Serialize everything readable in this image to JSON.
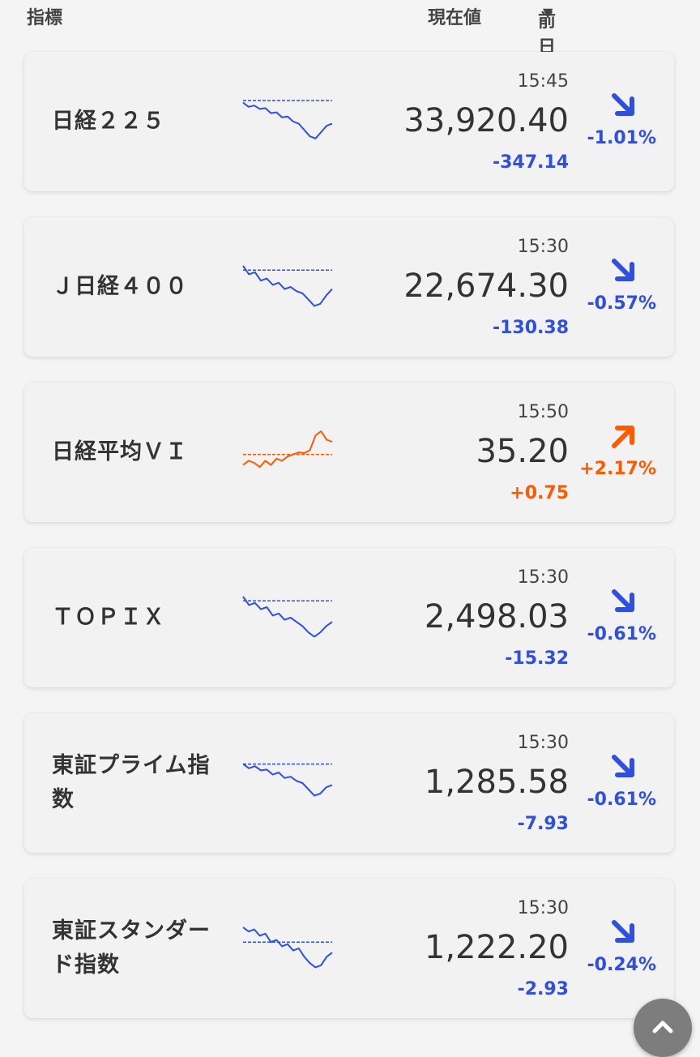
{
  "header": {
    "index_label": "指標",
    "price_label": "現在値",
    "change_label": "前日比率(%)",
    "sort_icon": "▼"
  },
  "colors": {
    "down": "#2f4fe0",
    "up": "#ff5a00"
  },
  "items": [
    {
      "name": "日経２２５",
      "time": "15:45",
      "price": "33,920.40",
      "diff": "-347.14",
      "pct": "-1.01%",
      "dir": "down",
      "spark": [
        0.05,
        0.15,
        0.12,
        0.2,
        0.18,
        0.3,
        0.28,
        0.4,
        0.38,
        0.5,
        0.55,
        0.7,
        0.85,
        0.9,
        0.75,
        0.6,
        0.55
      ],
      "base": 0.0
    },
    {
      "name": "Ｊ日経４００",
      "time": "15:30",
      "price": "22,674.30",
      "diff": "-130.38",
      "pct": "-0.57%",
      "dir": "down",
      "spark": [
        0.0,
        0.2,
        0.15,
        0.35,
        0.3,
        0.45,
        0.4,
        0.55,
        0.5,
        0.6,
        0.65,
        0.8,
        0.95,
        0.9,
        0.7,
        0.55
      ],
      "base": 0.1
    },
    {
      "name": "日経平均ＶＩ",
      "time": "15:50",
      "price": "35.20",
      "diff": "+0.75",
      "pct": "+2.17%",
      "dir": "up",
      "spark": [
        0.8,
        0.7,
        0.75,
        0.85,
        0.7,
        0.8,
        0.65,
        0.7,
        0.6,
        0.55,
        0.5,
        0.52,
        0.45,
        0.1,
        0.0,
        0.2,
        0.25
      ],
      "base": 0.55
    },
    {
      "name": "ＴＯＰＩＸ",
      "time": "15:30",
      "price": "2,498.03",
      "diff": "-15.32",
      "pct": "-0.61%",
      "dir": "down",
      "spark": [
        0.0,
        0.2,
        0.15,
        0.3,
        0.25,
        0.45,
        0.4,
        0.55,
        0.5,
        0.6,
        0.7,
        0.85,
        0.95,
        0.85,
        0.7,
        0.6
      ],
      "base": 0.1
    },
    {
      "name": "東証プライム指数",
      "time": "15:30",
      "price": "1,285.58",
      "diff": "-7.93",
      "pct": "-0.61%",
      "dir": "down",
      "spark": [
        0.05,
        0.15,
        0.1,
        0.2,
        0.18,
        0.3,
        0.25,
        0.38,
        0.35,
        0.45,
        0.5,
        0.65,
        0.8,
        0.75,
        0.6,
        0.55
      ],
      "base": 0.05
    },
    {
      "name": "東証スタンダード指数",
      "time": "15:30",
      "price": "1,222.20",
      "diff": "-2.93",
      "pct": "-0.24%",
      "dir": "down",
      "spark": [
        0.0,
        0.1,
        0.05,
        0.2,
        0.15,
        0.35,
        0.3,
        0.45,
        0.4,
        0.55,
        0.5,
        0.7,
        0.85,
        0.95,
        0.9,
        0.7,
        0.6
      ],
      "base": 0.35
    }
  ],
  "scroll_top_icon": "chevron-up"
}
